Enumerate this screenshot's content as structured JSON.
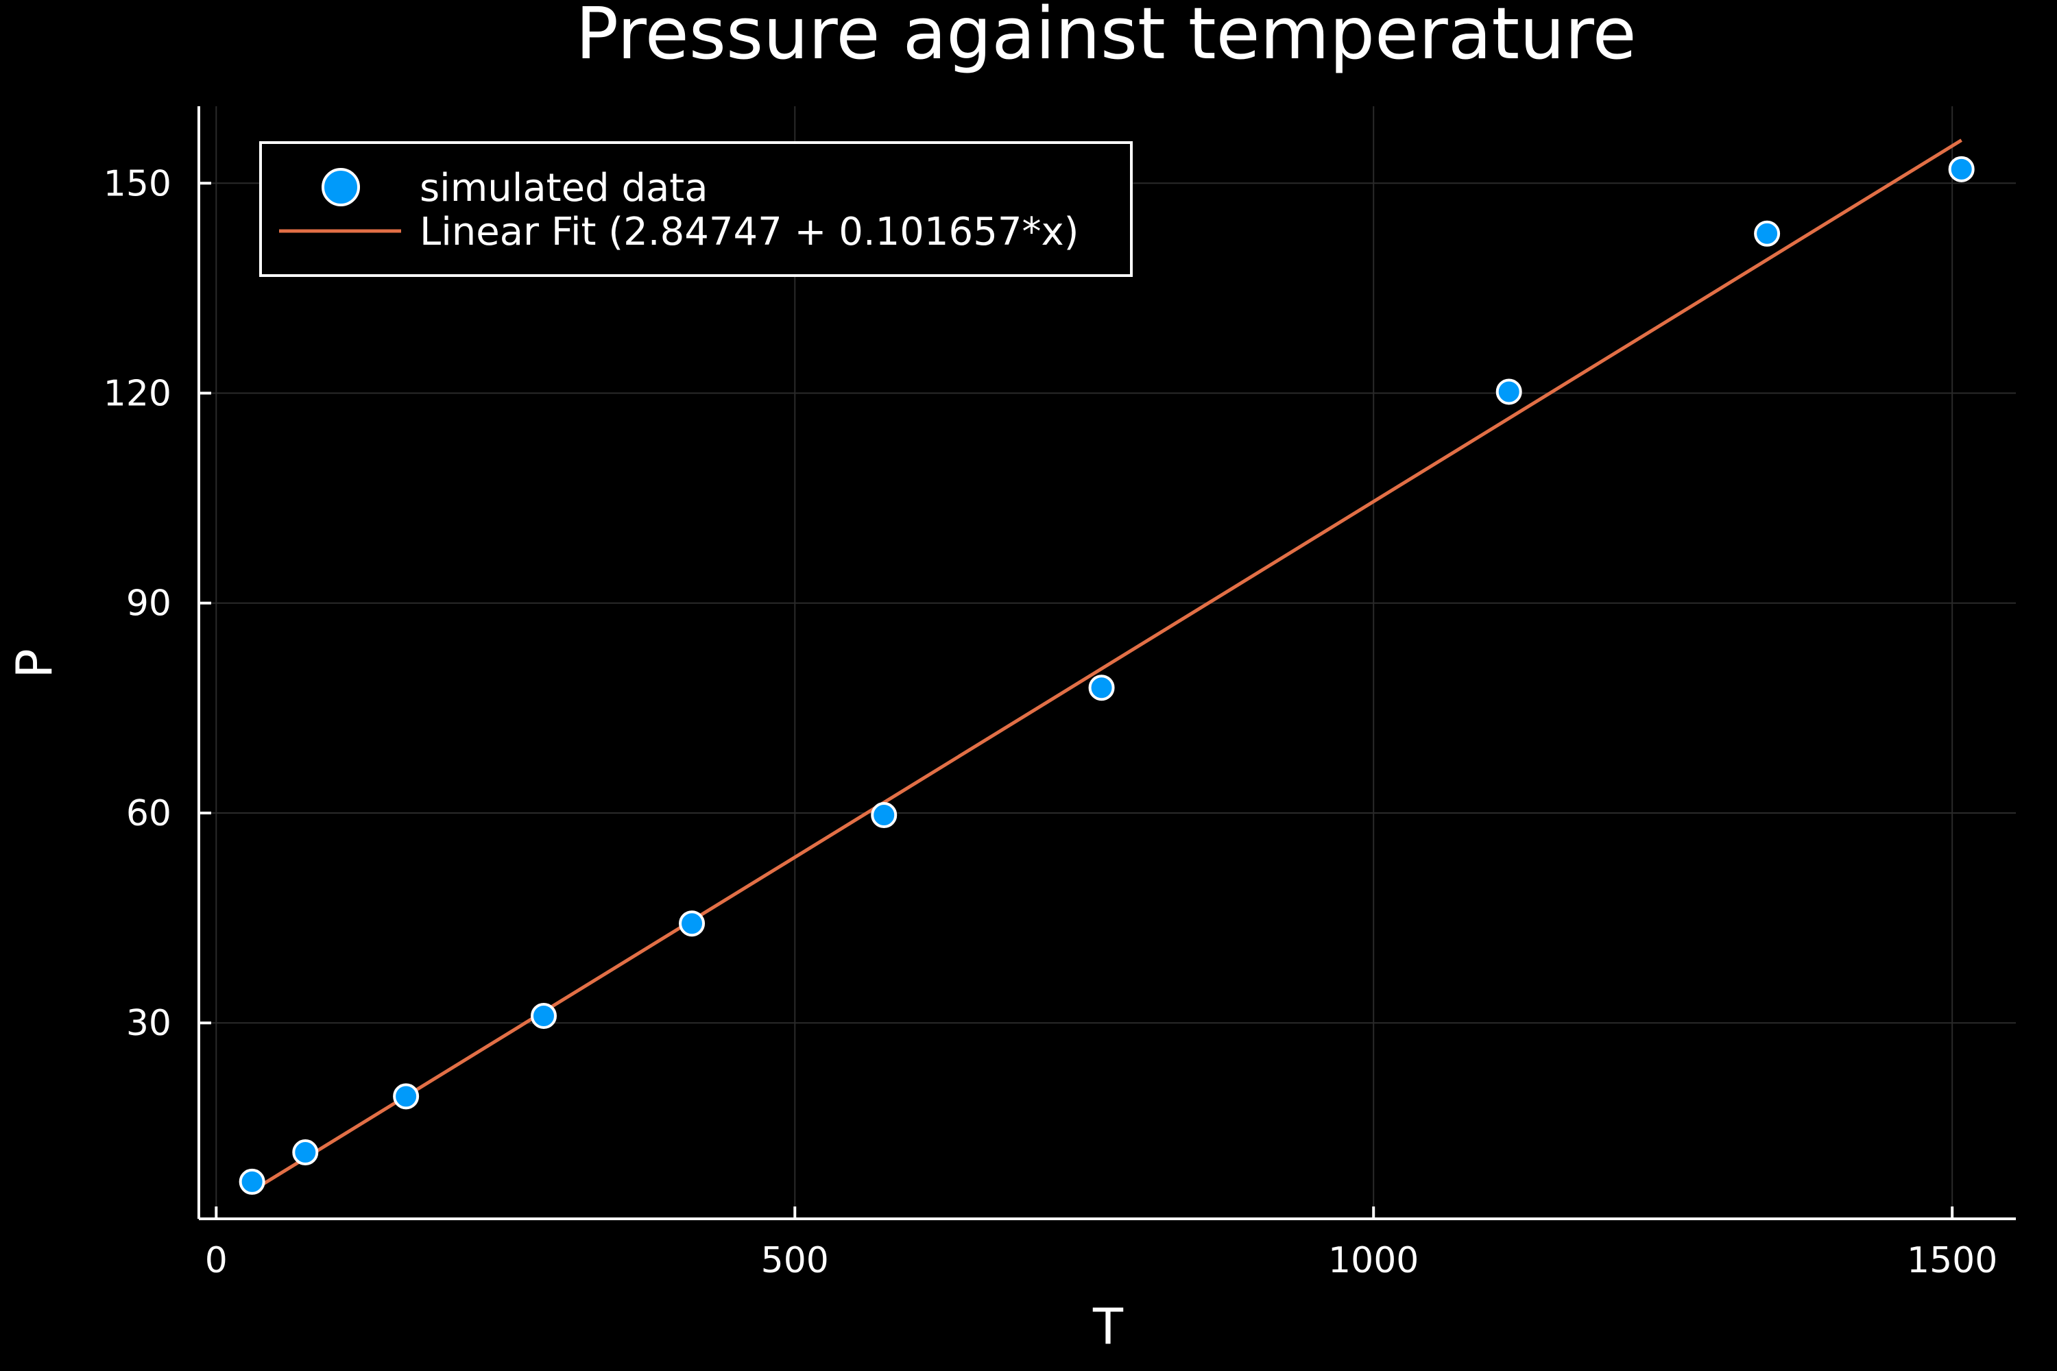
{
  "chart_data": {
    "type": "scatter",
    "title": "Pressure against temperature",
    "xlabel": "T",
    "ylabel": "P",
    "xlim": [
      -15,
      1555
    ],
    "ylim": [
      2,
      161
    ],
    "xticks": [
      0,
      500,
      1000,
      1500
    ],
    "yticks": [
      30,
      60,
      90,
      120,
      150
    ],
    "grid": true,
    "legend": "top-left",
    "background": "#000000",
    "series": [
      {
        "name": "simulated data",
        "kind": "scatter",
        "color": "#009AFA",
        "marker_edge": "#ffffff",
        "x": [
          31,
          77,
          164,
          283,
          411,
          577,
          765,
          1117,
          1340,
          1508
        ],
        "y": [
          7.3,
          11.5,
          19.5,
          31.0,
          44.2,
          59.7,
          77.9,
          120.2,
          142.8,
          152.0
        ]
      },
      {
        "name": "Linear Fit (2.84747 + 0.101657*x)",
        "kind": "line",
        "color": "#E26F46",
        "intercept": 2.84747,
        "slope": 0.101657,
        "x_range": [
          31,
          1508
        ]
      }
    ]
  }
}
